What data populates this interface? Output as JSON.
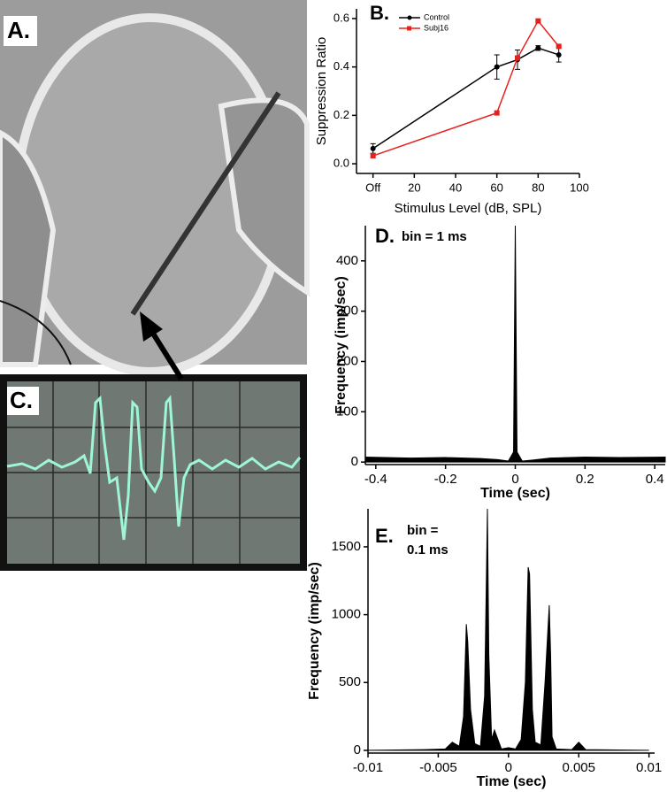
{
  "panels": {
    "a_label": "A.",
    "c_label": "C."
  },
  "chart_data": [
    {
      "type": "line",
      "panel_label": "B.",
      "x_label": "Stimulus Level (dB, SPL)",
      "y_label": "Suppression Ratio",
      "xlim": [
        -8,
        100
      ],
      "ylim": [
        -0.04,
        0.64
      ],
      "xticks": [
        {
          "value": 0,
          "label": "Off"
        },
        20,
        40,
        60,
        80,
        100
      ],
      "yticks": [
        {
          "value": 0,
          "label": "0.0"
        },
        0.2,
        0.4,
        0.6
      ],
      "series": [
        {
          "name": "Control",
          "color": "#000000",
          "marker": "circle",
          "x": [
            0,
            60,
            70,
            80,
            90
          ],
          "values": [
            0.063,
            0.4,
            0.43,
            0.478,
            0.45
          ],
          "errors": [
            0.02,
            0.05,
            0.04,
            0.01,
            0.03
          ]
        },
        {
          "name": "Subj16",
          "color": "#e8201c",
          "marker": "square",
          "x": [
            0,
            60,
            70,
            80,
            90
          ],
          "values": [
            0.033,
            0.21,
            0.437,
            0.59,
            0.485
          ]
        }
      ]
    },
    {
      "type": "area",
      "panel_label": "D.",
      "annotation": [
        "bin = 1 ms"
      ],
      "x_label": "Time (sec)",
      "y_label": "Frequency (imp/sec)",
      "color": "#000000",
      "xlim": [
        -0.43,
        0.43
      ],
      "ylim": [
        -5,
        470
      ],
      "xticks": [
        -0.4,
        -0.2,
        0,
        0.2,
        0.4
      ],
      "yticks": [
        0,
        100,
        200,
        300,
        400
      ],
      "x": [
        -0.43,
        -0.3,
        -0.2,
        -0.1,
        -0.05,
        -0.02,
        -0.005,
        0,
        0.005,
        0.02,
        0.05,
        0.1,
        0.2,
        0.3,
        0.43
      ],
      "values": [
        10,
        8,
        9,
        7,
        5,
        2,
        20,
        470,
        20,
        2,
        4,
        8,
        10,
        9,
        10
      ]
    },
    {
      "type": "area",
      "panel_label": "E.",
      "annotation": [
        "bin =",
        "0.1 ms"
      ],
      "x_label": "Time (sec)",
      "y_label": "Frequency (imp/sec)",
      "color": "#000000",
      "xlim": [
        -0.01,
        0.0104
      ],
      "ylim": [
        -20,
        1780
      ],
      "xticks": [
        -0.01,
        -0.005,
        0,
        0.005,
        0.01
      ],
      "yticks": [
        0,
        500,
        1000,
        1500
      ],
      "x": [
        -0.01,
        -0.006,
        -0.0045,
        -0.004,
        -0.0035,
        -0.0032,
        -0.003,
        -0.0029,
        -0.0027,
        -0.0024,
        -0.002,
        -0.0017,
        -0.0015,
        -0.0014,
        -0.0012,
        -0.001,
        -0.0005,
        0,
        0.0005,
        0.0009,
        0.0012,
        0.0014,
        0.0015,
        0.0017,
        0.0019,
        0.0023,
        0.0026,
        0.0029,
        0.003,
        0.0031,
        0.0034,
        0.0045,
        0.005,
        0.0055,
        0.01
      ],
      "values": [
        0,
        5,
        10,
        60,
        30,
        250,
        930,
        800,
        300,
        50,
        30,
        400,
        1780,
        700,
        80,
        150,
        10,
        20,
        10,
        80,
        500,
        1350,
        1300,
        300,
        60,
        40,
        500,
        1070,
        700,
        100,
        10,
        5,
        60,
        5,
        0
      ]
    }
  ]
}
